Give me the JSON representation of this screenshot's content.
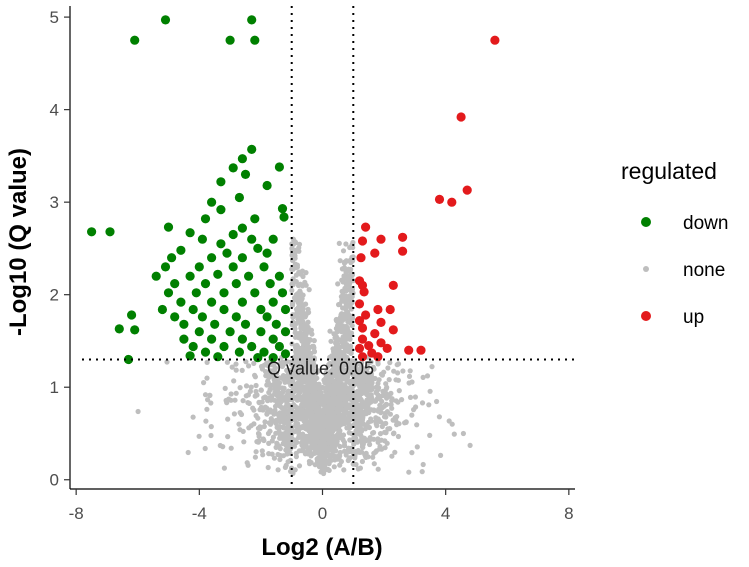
{
  "chart_data": {
    "type": "scatter",
    "title": "",
    "xlabel": "Log2 (A/B)",
    "ylabel": "-Log10 (Q value)",
    "xlim": [
      -8.2,
      8.2
    ],
    "ylim": [
      -0.1,
      5.12
    ],
    "x_ticks": [
      -8,
      -4,
      0,
      4,
      8
    ],
    "y_ticks": [
      0,
      1,
      2,
      3,
      4,
      5
    ],
    "grid": false,
    "legend": {
      "title": "regulated",
      "placement": "right",
      "entries": [
        {
          "label": "down",
          "color": "#008000"
        },
        {
          "label": "none",
          "color": "#BEBEBE"
        },
        {
          "label": "up",
          "color": "#E31A1C"
        }
      ]
    },
    "thresholds": {
      "vertical_lines_x": [
        -1,
        1
      ],
      "horizontal_line_y": 1.3,
      "line_style": "dotted"
    },
    "annotation": {
      "text": "Q value: 0.05",
      "x": 0,
      "y": 1.2
    },
    "series": [
      {
        "name": "down",
        "color": "#008000",
        "points": [
          [
            -5.1,
            4.97
          ],
          [
            -2.3,
            4.97
          ],
          [
            -6.1,
            4.75
          ],
          [
            -3.0,
            4.75
          ],
          [
            -2.2,
            4.75
          ],
          [
            -2.3,
            3.57
          ],
          [
            -2.6,
            3.47
          ],
          [
            -2.9,
            3.37
          ],
          [
            -1.4,
            3.38
          ],
          [
            -2.5,
            3.3
          ],
          [
            -3.3,
            3.22
          ],
          [
            -1.8,
            3.18
          ],
          [
            -2.7,
            3.05
          ],
          [
            -3.6,
            3.0
          ],
          [
            -1.3,
            2.93
          ],
          [
            -3.3,
            2.92
          ],
          [
            -1.25,
            2.84
          ],
          [
            -3.8,
            2.82
          ],
          [
            -2.2,
            2.82
          ],
          [
            -2.6,
            2.72
          ],
          [
            -5.0,
            2.73
          ],
          [
            -7.5,
            2.68
          ],
          [
            -6.9,
            2.68
          ],
          [
            -4.3,
            2.67
          ],
          [
            -2.9,
            2.65
          ],
          [
            -3.9,
            2.6
          ],
          [
            -2.3,
            2.6
          ],
          [
            -1.6,
            2.6
          ],
          [
            -3.3,
            2.55
          ],
          [
            -2.1,
            2.5
          ],
          [
            -4.6,
            2.48
          ],
          [
            -3.1,
            2.45
          ],
          [
            -1.8,
            2.45
          ],
          [
            -4.9,
            2.4
          ],
          [
            -3.6,
            2.4
          ],
          [
            -2.6,
            2.4
          ],
          [
            -5.1,
            2.3
          ],
          [
            -4.0,
            2.3
          ],
          [
            -2.9,
            2.3
          ],
          [
            -1.9,
            2.3
          ],
          [
            -5.4,
            2.2
          ],
          [
            -4.3,
            2.2
          ],
          [
            -3.4,
            2.22
          ],
          [
            -2.4,
            2.2
          ],
          [
            -1.4,
            2.2
          ],
          [
            -4.8,
            2.12
          ],
          [
            -3.8,
            2.12
          ],
          [
            -2.8,
            2.12
          ],
          [
            -1.7,
            2.12
          ],
          [
            -5.0,
            2.02
          ],
          [
            -4.1,
            2.02
          ],
          [
            -3.2,
            2.02
          ],
          [
            -2.2,
            2.02
          ],
          [
            -1.3,
            2.02
          ],
          [
            -4.6,
            1.92
          ],
          [
            -3.6,
            1.92
          ],
          [
            -2.6,
            1.92
          ],
          [
            -1.6,
            1.92
          ],
          [
            -5.2,
            1.84
          ],
          [
            -4.2,
            1.84
          ],
          [
            -3.2,
            1.84
          ],
          [
            -2.0,
            1.84
          ],
          [
            -1.2,
            1.84
          ],
          [
            -4.8,
            1.76
          ],
          [
            -3.9,
            1.76
          ],
          [
            -2.8,
            1.76
          ],
          [
            -1.8,
            1.76
          ],
          [
            -6.2,
            1.78
          ],
          [
            -4.5,
            1.68
          ],
          [
            -3.5,
            1.68
          ],
          [
            -2.5,
            1.68
          ],
          [
            -1.5,
            1.68
          ],
          [
            -4.0,
            1.6
          ],
          [
            -3.0,
            1.6
          ],
          [
            -2.0,
            1.6
          ],
          [
            -1.2,
            1.6
          ],
          [
            -6.6,
            1.63
          ],
          [
            -6.1,
            1.62
          ],
          [
            -4.5,
            1.52
          ],
          [
            -3.6,
            1.52
          ],
          [
            -2.6,
            1.52
          ],
          [
            -1.6,
            1.52
          ],
          [
            -4.2,
            1.44
          ],
          [
            -3.2,
            1.44
          ],
          [
            -2.3,
            1.44
          ],
          [
            -1.4,
            1.44
          ],
          [
            -3.8,
            1.38
          ],
          [
            -2.7,
            1.38
          ],
          [
            -1.9,
            1.38
          ],
          [
            -1.2,
            1.36
          ],
          [
            -3.4,
            1.33
          ],
          [
            -4.3,
            1.34
          ],
          [
            -6.3,
            1.3
          ],
          [
            -2.1,
            1.32
          ],
          [
            -1.6,
            1.32
          ]
        ]
      },
      {
        "name": "up",
        "color": "#E31A1C",
        "points": [
          [
            5.6,
            4.75
          ],
          [
            4.5,
            3.92
          ],
          [
            4.7,
            3.13
          ],
          [
            3.8,
            3.03
          ],
          [
            4.2,
            3.0
          ],
          [
            1.4,
            2.73
          ],
          [
            2.6,
            2.62
          ],
          [
            1.9,
            2.6
          ],
          [
            1.3,
            2.58
          ],
          [
            2.6,
            2.47
          ],
          [
            1.7,
            2.45
          ],
          [
            1.25,
            2.4
          ],
          [
            1.2,
            2.15
          ],
          [
            1.3,
            2.1
          ],
          [
            2.3,
            2.1
          ],
          [
            1.35,
            2.03
          ],
          [
            1.2,
            1.9
          ],
          [
            1.8,
            1.84
          ],
          [
            2.2,
            1.84
          ],
          [
            1.4,
            1.78
          ],
          [
            1.2,
            1.72
          ],
          [
            1.9,
            1.7
          ],
          [
            1.3,
            1.64
          ],
          [
            2.3,
            1.62
          ],
          [
            1.7,
            1.58
          ],
          [
            1.3,
            1.52
          ],
          [
            1.9,
            1.48
          ],
          [
            1.5,
            1.45
          ],
          [
            1.2,
            1.42
          ],
          [
            2.1,
            1.42
          ],
          [
            2.8,
            1.4
          ],
          [
            3.2,
            1.4
          ],
          [
            1.6,
            1.37
          ],
          [
            1.3,
            1.33
          ],
          [
            1.8,
            1.33
          ]
        ]
      }
    ],
    "none_series": {
      "name": "none",
      "color": "#BEBEBE",
      "count": 2600,
      "x_range": [
        -7,
        6
      ],
      "y_max": 2.6
    }
  }
}
